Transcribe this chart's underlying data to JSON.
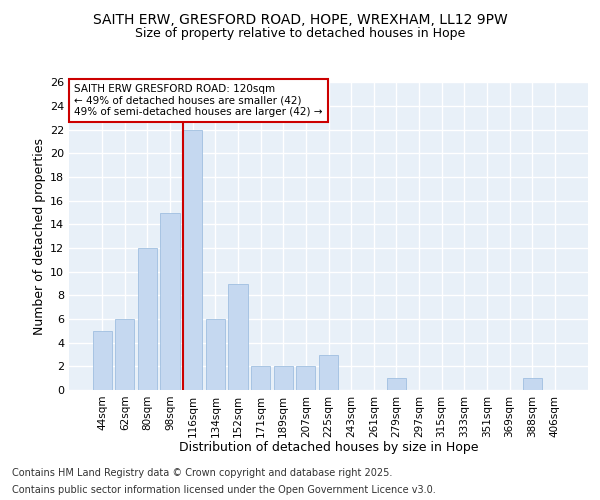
{
  "title_line1": "SAITH ERW, GRESFORD ROAD, HOPE, WREXHAM, LL12 9PW",
  "title_line2": "Size of property relative to detached houses in Hope",
  "xlabel": "Distribution of detached houses by size in Hope",
  "ylabel": "Number of detached properties",
  "categories": [
    "44sqm",
    "62sqm",
    "80sqm",
    "98sqm",
    "116sqm",
    "134sqm",
    "152sqm",
    "171sqm",
    "189sqm",
    "207sqm",
    "225sqm",
    "243sqm",
    "261sqm",
    "279sqm",
    "297sqm",
    "315sqm",
    "333sqm",
    "351sqm",
    "369sqm",
    "388sqm",
    "406sqm"
  ],
  "values": [
    5,
    6,
    12,
    15,
    22,
    6,
    9,
    2,
    2,
    2,
    3,
    0,
    0,
    1,
    0,
    0,
    0,
    0,
    0,
    1,
    0
  ],
  "bar_color": "#c5d8f0",
  "bar_edgecolor": "#a0bfe0",
  "highlight_index": 4,
  "highlight_line_color": "#cc0000",
  "ylim": [
    0,
    26
  ],
  "yticks": [
    0,
    2,
    4,
    6,
    8,
    10,
    12,
    14,
    16,
    18,
    20,
    22,
    24,
    26
  ],
  "annotation_text": "SAITH ERW GRESFORD ROAD: 120sqm\n← 49% of detached houses are smaller (42)\n49% of semi-detached houses are larger (42) →",
  "annotation_box_edgecolor": "#cc0000",
  "footer_line1": "Contains HM Land Registry data © Crown copyright and database right 2025.",
  "footer_line2": "Contains public sector information licensed under the Open Government Licence v3.0.",
  "bg_color": "#ffffff",
  "plot_bg_color": "#e8f0f8",
  "grid_color": "#ffffff",
  "title_fontsize": 10,
  "subtitle_fontsize": 9,
  "tick_fontsize": 7.5,
  "label_fontsize": 9,
  "footer_fontsize": 7
}
